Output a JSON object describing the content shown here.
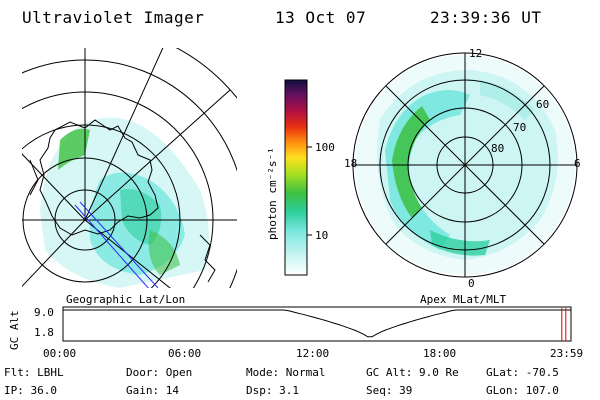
{
  "header": {
    "instrument": "Ultraviolet Imager",
    "date": "13 Oct 07",
    "time": "23:39:36 UT"
  },
  "colorbar": {
    "label": "photon cm⁻²s⁻¹",
    "ticks": [
      "100",
      "10"
    ],
    "scale": "log"
  },
  "geo_panel": {
    "caption": "Geographic Lat/Lon"
  },
  "polar_panel": {
    "caption": "Apex MLat/MLT",
    "mlt_labels": [
      "12",
      "18",
      "6",
      "0"
    ],
    "mlat_labels": [
      "60",
      "70",
      "80"
    ]
  },
  "altitude_plot": {
    "ylabel": "GC Alt",
    "yticks": [
      "9.0",
      "1.8"
    ],
    "xticks": [
      "00:00",
      "06:00",
      "12:00",
      "18:00",
      "23:59"
    ],
    "current_time_marker_hours": 23.66,
    "marker_color": "#e00000"
  },
  "info": {
    "filter": "Flt: LBHL",
    "door": "Door: Open",
    "mode": "Mode: Normal",
    "gc_alt": "GC Alt: 9.0 Re",
    "glat": "GLat: -70.5",
    "ip": "IP: 36.0",
    "gain": "Gain: 14",
    "dsp": "Dsp:    3.1",
    "seq": "Seq: 39",
    "glon": "GLon: 107.0"
  },
  "colors": {
    "aurora_low": "#7fe8e0",
    "aurora_mid": "#2ecfa0",
    "aurora_high": "#3cc040",
    "map_line": "#000000",
    "track_line": "#2a2aff"
  }
}
